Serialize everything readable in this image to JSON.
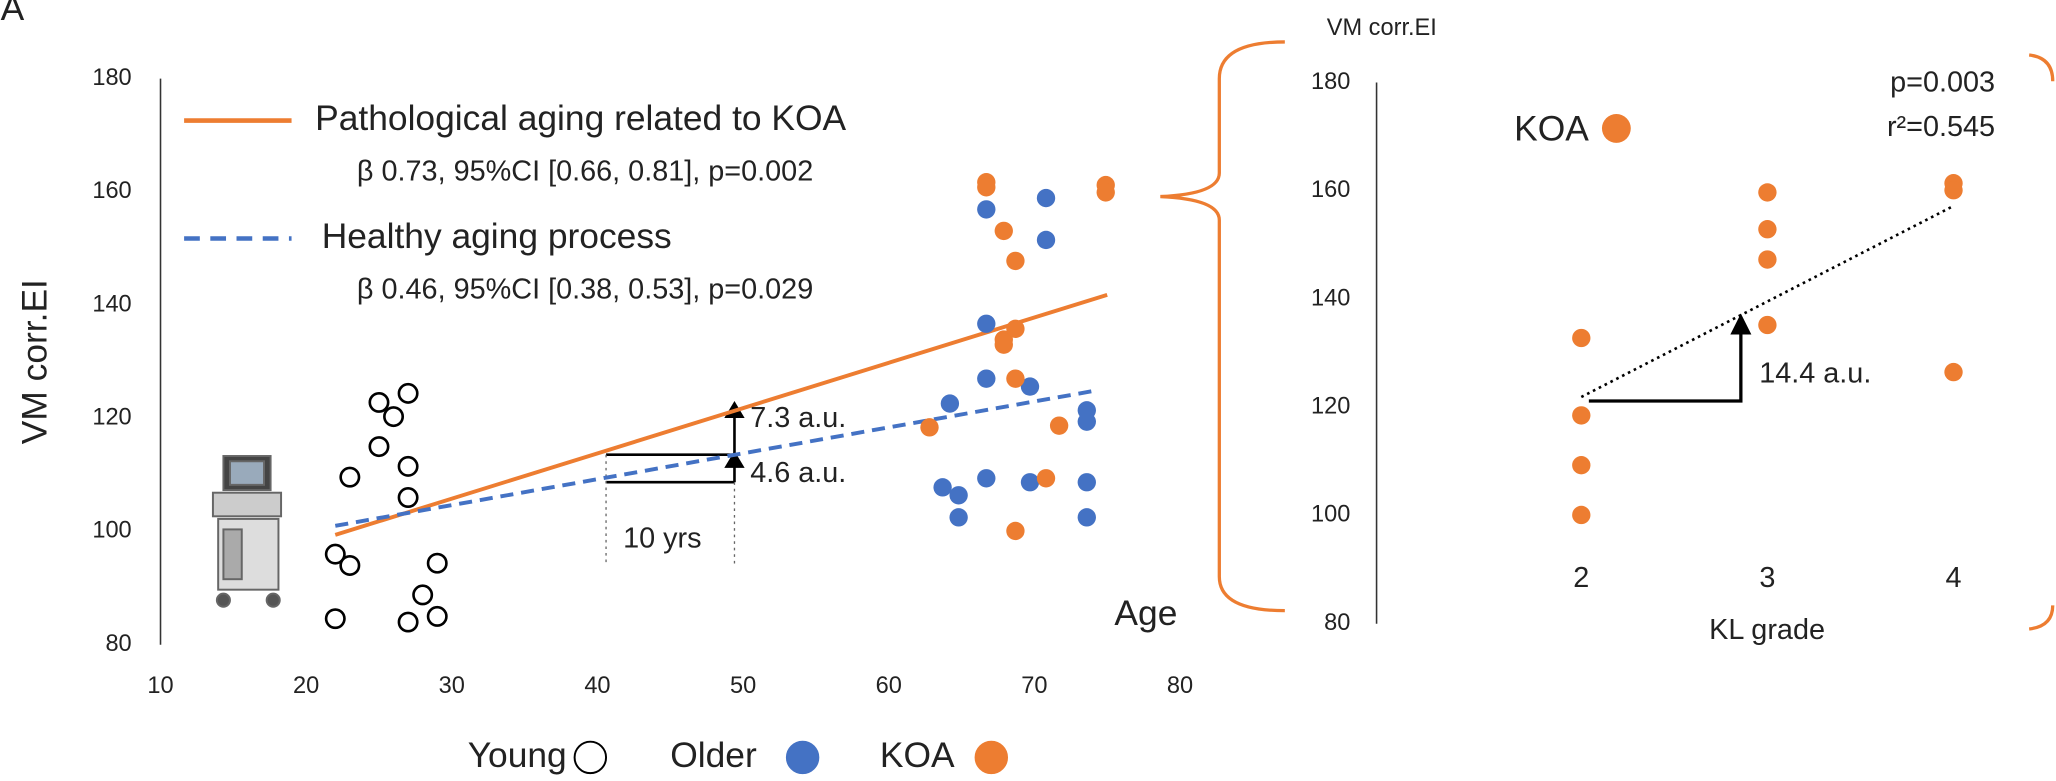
{
  "chart_data": [
    {
      "type": "scatter",
      "panel_label": "A",
      "x_label": "Age",
      "y_label": "VM corr.EI",
      "xlim": [
        10,
        80
      ],
      "xticks": [
        10,
        20,
        30,
        40,
        50,
        60,
        70,
        80
      ],
      "ylim": [
        80,
        180
      ],
      "yticks": [
        80,
        100,
        120,
        140,
        160,
        180
      ],
      "series": [
        {
          "name": "Young",
          "color": "#000000",
          "marker": "open",
          "x": [
            22,
            22,
            23,
            23,
            25,
            25,
            26,
            27,
            27,
            27,
            27,
            28,
            29,
            29
          ],
          "values": [
            84.6,
            96,
            94,
            109.6,
            122.8,
            115,
            120.3,
            124.4,
            111.5,
            106,
            84,
            88.8,
            94.4,
            85
          ]
        },
        {
          "name": "Older",
          "color": "#4472c4",
          "marker": "filled",
          "x": [
            64.2,
            63.7,
            64.8,
            64.8,
            66.7,
            66.7,
            66.7,
            66.7,
            70.8,
            70.8,
            69.7,
            69.7,
            73.6,
            73.6,
            73.6,
            73.6
          ],
          "values": [
            122.6,
            107.8,
            106.4,
            102.5,
            156.9,
            136.7,
            127,
            109.4,
            158.9,
            151.5,
            125.6,
            108.7,
            121.4,
            119.4,
            108.7,
            102.5
          ]
        },
        {
          "name": "KOA",
          "color": "#ed7d31",
          "marker": "filled",
          "x": [
            66.7,
            66.7,
            67.9,
            68.7,
            67.9,
            67.9,
            68.7,
            68.7,
            68.7,
            62.8,
            70.8,
            71.7,
            74.9,
            74.9
          ],
          "values": [
            161.7,
            160.8,
            153.1,
            147.8,
            133.9,
            133,
            135.8,
            127,
            100.1,
            118.4,
            109.4,
            118.7,
            161.2,
            159.9
          ]
        }
      ],
      "trend_lines": [
        {
          "name": "Pathological aging related to KOA",
          "stats": "β 0.73, 95%CI [0.66, 0.81], p=0.002",
          "color": "#ed7d31",
          "dashed": false,
          "x": [
            22,
            75
          ],
          "values": [
            99.4,
            141.8
          ]
        },
        {
          "name": "Healthy aging process",
          "stats": "β 0.46, 95%CI [0.38, 0.53], p=0.029",
          "color": "#4472c4",
          "dashed": true,
          "x": [
            22,
            74
          ],
          "values": [
            101,
            124.8
          ]
        }
      ],
      "annotations": [
        "7.3 a.u.",
        "4.6 a.u.",
        "10 yrs"
      ]
    },
    {
      "type": "scatter",
      "x_label": "KL grade",
      "y_label": "VM corr.EI",
      "xlim": [
        0.9,
        4.35
      ],
      "xticks": [
        2,
        3,
        4
      ],
      "ylim": [
        80,
        180
      ],
      "yticks": [
        80,
        100,
        120,
        140,
        160,
        180
      ],
      "series": [
        {
          "name": "KOA",
          "color": "#ed7d31",
          "x": [
            2,
            2,
            2,
            2,
            3,
            3,
            3,
            3,
            4,
            4,
            4
          ],
          "values": [
            132.8,
            118.5,
            109.3,
            100.1,
            159.7,
            152.9,
            147.3,
            135.2,
            161.4,
            160.1,
            126.5
          ]
        }
      ],
      "trend_line": {
        "x": [
          2,
          4
        ],
        "values": [
          121.9,
          157.2
        ]
      },
      "annotations": [
        "p=0.003",
        "r²=0.545",
        "14.4 a.u."
      ]
    }
  ]
}
